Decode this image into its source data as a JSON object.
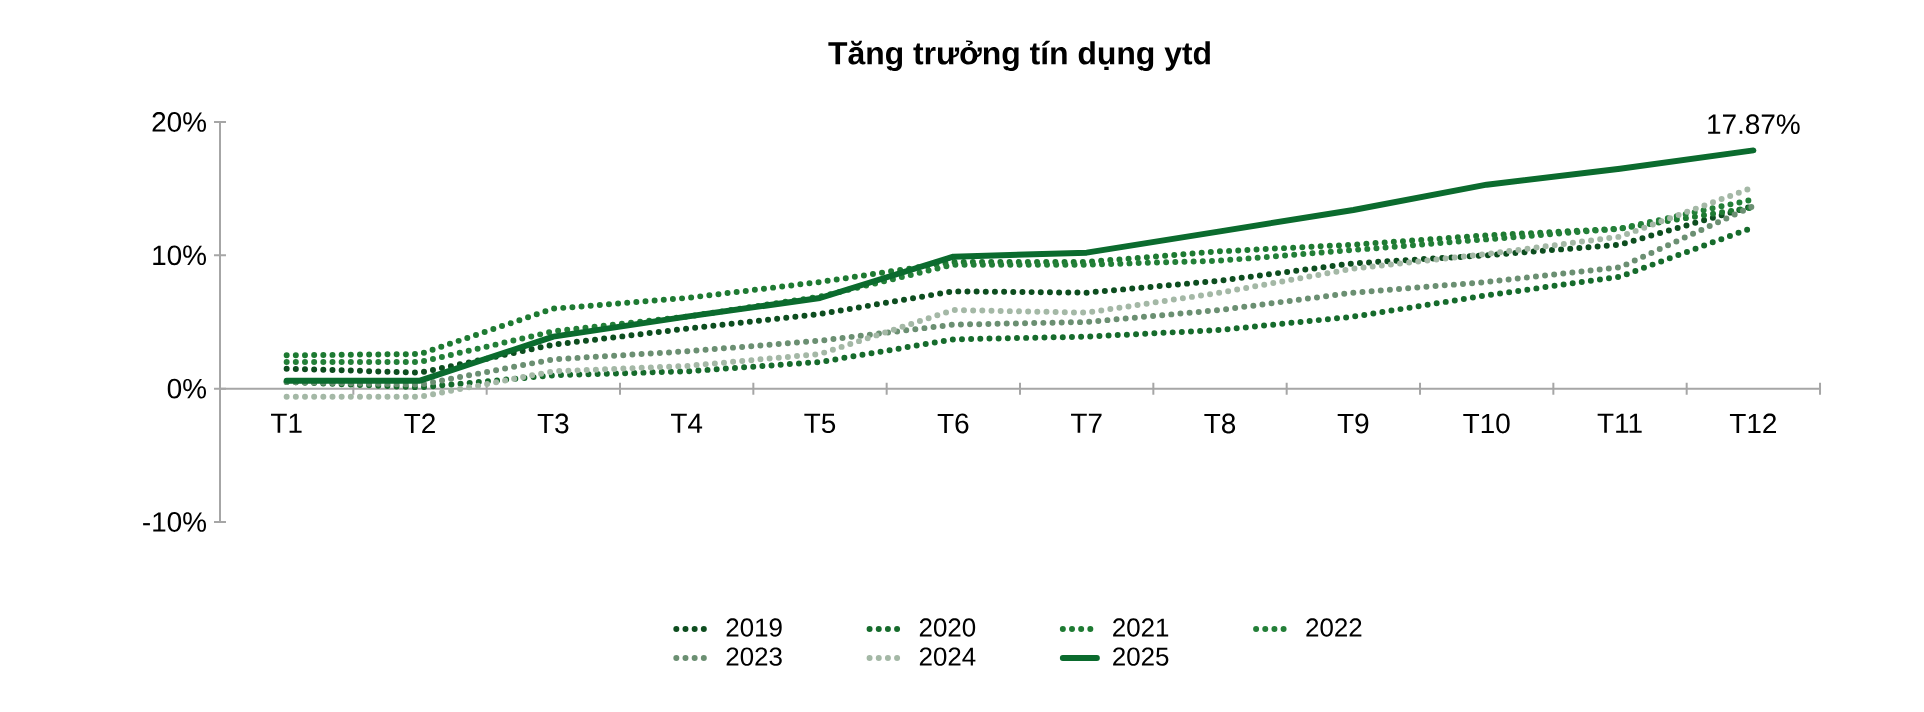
{
  "chart_data": {
    "type": "line",
    "title": "Tăng trưởng tín dụng ytd",
    "categories": [
      "T1",
      "T2",
      "T3",
      "T4",
      "T5",
      "T6",
      "T7",
      "T8",
      "T9",
      "T10",
      "T11",
      "T12"
    ],
    "ylim": [
      -10,
      20
    ],
    "yticks": [
      {
        "value": -10,
        "label": "-10%"
      },
      {
        "value": 0,
        "label": "0%"
      },
      {
        "value": 10,
        "label": "10%"
      },
      {
        "value": 20,
        "label": "20%"
      }
    ],
    "grid": false,
    "legend": "bottom",
    "marker": "none",
    "series": [
      {
        "name": "2019",
        "color": "#0d4d1f",
        "line_style": "dotted",
        "values": [
          1.5,
          1.2,
          3.3,
          4.5,
          5.6,
          7.3,
          7.2,
          8.1,
          9.4,
          10.0,
          10.8,
          13.7
        ]
      },
      {
        "name": "2020",
        "color": "#166b2c",
        "line_style": "dotted",
        "values": [
          0.5,
          0.1,
          1.0,
          1.3,
          2.0,
          3.7,
          3.9,
          4.4,
          5.4,
          7.0,
          8.4,
          12.1
        ]
      },
      {
        "name": "2021",
        "color": "#1e7a32",
        "line_style": "dotted",
        "values": [
          2.5,
          2.6,
          6.0,
          6.8,
          8.0,
          9.5,
          9.5,
          10.3,
          10.8,
          11.5,
          12.0,
          13.6
        ]
      },
      {
        "name": "2022",
        "color": "#237f38",
        "line_style": "dotted",
        "values": [
          2.0,
          2.0,
          4.3,
          5.4,
          6.9,
          9.3,
          9.3,
          9.6,
          10.4,
          11.2,
          12.0,
          14.2
        ]
      },
      {
        "name": "2023",
        "color": "#6b8f72",
        "line_style": "dotted",
        "values": [
          0.5,
          0.3,
          2.2,
          2.8,
          3.6,
          4.8,
          5.0,
          5.9,
          7.2,
          8.0,
          9.1,
          13.7
        ]
      },
      {
        "name": "2024",
        "color": "#a4b8a6",
        "line_style": "dotted",
        "values": [
          -0.6,
          -0.6,
          1.3,
          1.7,
          2.6,
          5.9,
          5.7,
          7.2,
          9.0,
          10.1,
          11.4,
          15.1
        ]
      },
      {
        "name": "2025",
        "color": "#0b6b2e",
        "line_style": "solid",
        "values": [
          0.6,
          0.6,
          3.9,
          5.4,
          6.8,
          9.9,
          10.2,
          11.8,
          13.4,
          15.3,
          16.5,
          17.87
        ]
      }
    ],
    "annotations": [
      {
        "text": "17.87%",
        "x": "T12",
        "y": 17.87
      }
    ]
  }
}
